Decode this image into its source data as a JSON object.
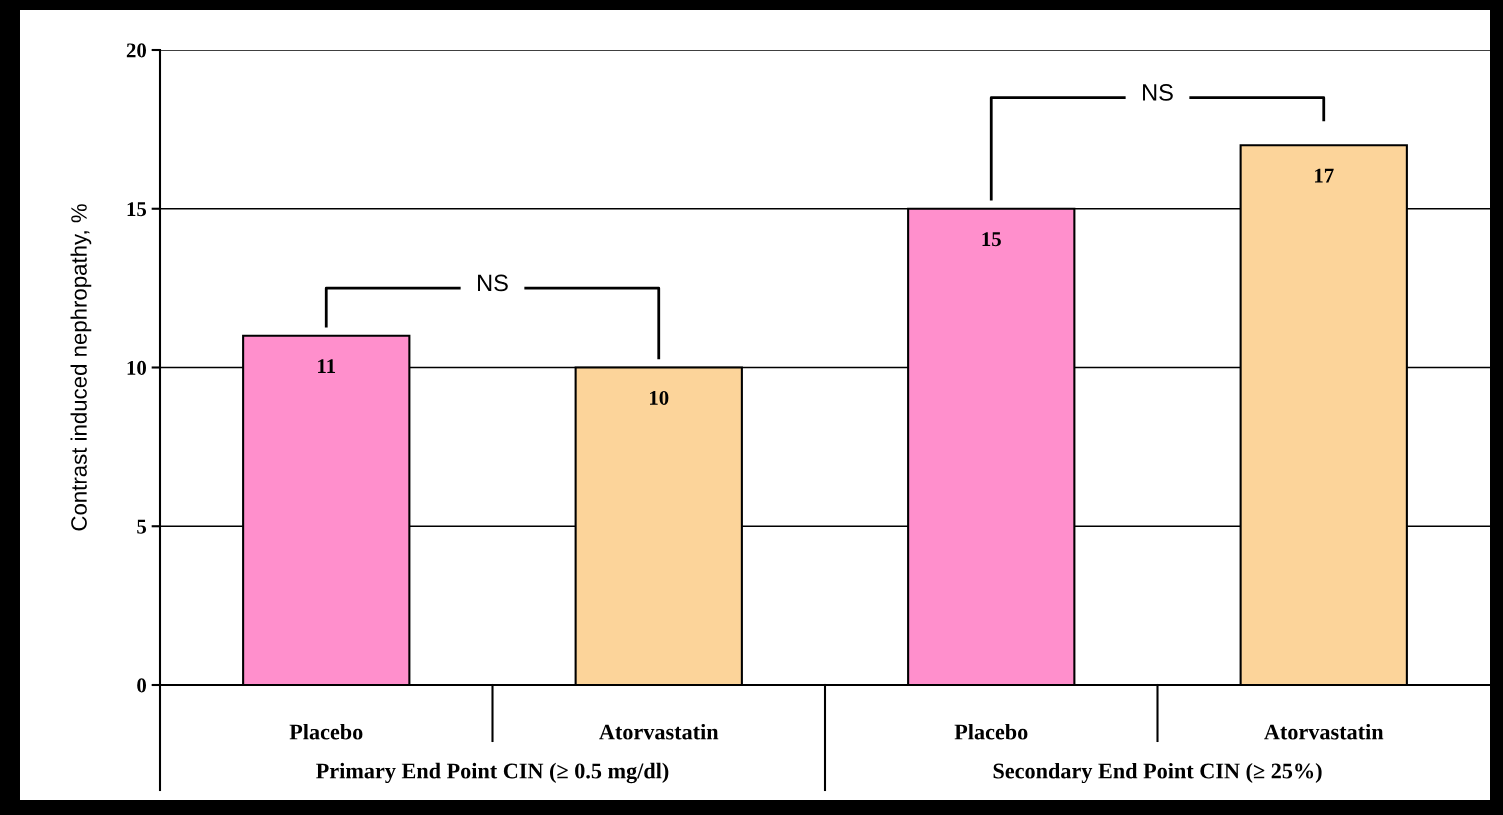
{
  "chart_data": {
    "type": "bar",
    "ylabel": "Contrast induced nephropathy, %",
    "categories": [
      "Placebo",
      "Atorvastatin",
      "Placebo",
      "Atorvastatin"
    ],
    "values": [
      11,
      10,
      15,
      17
    ],
    "colors": [
      "#ff8fcc",
      "#fcd49a",
      "#ff8fcc",
      "#fcd49a"
    ],
    "data_labels": true,
    "ylim": [
      0,
      20
    ],
    "yticks": [
      0,
      5,
      10,
      15,
      20
    ],
    "grid": "y",
    "annotations": [
      "NS",
      "NS",
      "Primary End Point CIN (≥ 0.5 mg/dl)",
      "Secondary End Point CIN (≥ 25%)"
    ]
  }
}
